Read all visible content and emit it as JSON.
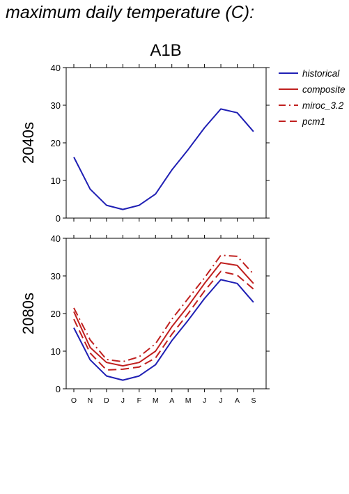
{
  "title": "maximum daily temperature (C):",
  "chart_data": {
    "type": "line",
    "scenario": "A1B",
    "months": [
      "O",
      "N",
      "D",
      "J",
      "F",
      "M",
      "A",
      "M",
      "J",
      "J",
      "A",
      "S"
    ],
    "ylim": [
      0,
      40
    ],
    "yticks": [
      0,
      10,
      20,
      30,
      40
    ],
    "colors": {
      "historical": "#1f1fb4",
      "projection": "#c0201f"
    },
    "legend": [
      {
        "name": "historical",
        "style": "solid",
        "color": "#1f1fb4"
      },
      {
        "name": "composite",
        "style": "solid",
        "color": "#c0201f"
      },
      {
        "name": "miroc_3.2",
        "style": "dashdot",
        "color": "#c0201f"
      },
      {
        "name": "pcm1",
        "style": "dashed",
        "color": "#c0201f"
      }
    ],
    "panels": [
      {
        "label": "2040s",
        "series": [
          {
            "name": "historical",
            "style": "solid",
            "color": "#1f1fb4",
            "values": [
              16.2,
              7.7,
              3.4,
              2.3,
              3.4,
              6.4,
              12.8,
              18.2,
              24.0,
              29.0,
              28.0,
              23.0
            ]
          }
        ]
      },
      {
        "label": "2080s",
        "series": [
          {
            "name": "historical",
            "style": "solid",
            "color": "#1f1fb4",
            "values": [
              16.2,
              7.7,
              3.4,
              2.3,
              3.4,
              6.4,
              12.8,
              18.2,
              24.0,
              29.0,
              28.0,
              23.0
            ]
          },
          {
            "name": "composite",
            "style": "solid",
            "color": "#c0201f",
            "values": [
              20.5,
              11.0,
              7.0,
              6.1,
              7.0,
              10.0,
              16.5,
              22.0,
              28.0,
              33.5,
              32.8,
              28.0
            ]
          },
          {
            "name": "miroc_3.2",
            "style": "dashdot",
            "color": "#c0201f",
            "values": [
              21.5,
              13.0,
              7.8,
              7.2,
              8.5,
              12.0,
              18.5,
              24.0,
              29.5,
              35.5,
              35.2,
              30.5
            ]
          },
          {
            "name": "pcm1",
            "style": "dashed",
            "color": "#c0201f",
            "values": [
              18.5,
              9.5,
              5.0,
              5.2,
              5.8,
              8.2,
              14.5,
              20.0,
              26.0,
              31.2,
              30.2,
              26.5
            ]
          }
        ]
      }
    ]
  }
}
